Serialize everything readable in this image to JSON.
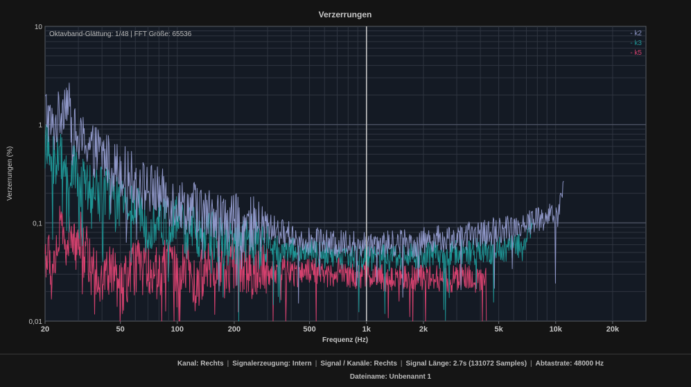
{
  "chart_data": {
    "type": "line",
    "title": "Verzerrungen",
    "xlabel": "Frequenz (Hz)",
    "ylabel": "Verzerrungen (%)",
    "x_scale": "log",
    "y_scale": "log",
    "xlim": [
      20,
      30000
    ],
    "ylim": [
      0.01,
      10
    ],
    "grid": true,
    "legend_position": "top-right",
    "annotation": "Oktavband-Glättung: 1/48 | FFT Größe: 65536",
    "marker_x": 1000,
    "x_ticks": [
      {
        "v": 20,
        "label": "20"
      },
      {
        "v": 50,
        "label": "50"
      },
      {
        "v": 100,
        "label": "100"
      },
      {
        "v": 200,
        "label": "200"
      },
      {
        "v": 500,
        "label": "500"
      },
      {
        "v": 1000,
        "label": "1k"
      },
      {
        "v": 2000,
        "label": "2k"
      },
      {
        "v": 5000,
        "label": "5k"
      },
      {
        "v": 10000,
        "label": "10k"
      },
      {
        "v": 20000,
        "label": "20k"
      }
    ],
    "y_ticks": [
      {
        "v": 10,
        "label": "10"
      },
      {
        "v": 1,
        "label": "1"
      },
      {
        "v": 0.1,
        "label": "0,1"
      },
      {
        "v": 0.01,
        "label": "0,01"
      }
    ],
    "series": [
      {
        "name": "k2",
        "color": "#8f97c8",
        "x": [
          20,
          22,
          24,
          26,
          28,
          30,
          33,
          36,
          40,
          45,
          50,
          56,
          63,
          71,
          80,
          90,
          100,
          112,
          125,
          140,
          160,
          180,
          200,
          224,
          250,
          280,
          315,
          355,
          400,
          450,
          500,
          560,
          630,
          710,
          800,
          900,
          1000,
          1120,
          1250,
          1400,
          1600,
          1800,
          2000,
          2240,
          2500,
          2800,
          3150,
          3550,
          4000,
          4500,
          5000,
          5600,
          6300,
          7100,
          8000,
          9000,
          10000,
          10500,
          11000
        ],
        "y": [
          1.5,
          0.85,
          1.3,
          2.0,
          0.9,
          0.65,
          0.7,
          0.55,
          0.5,
          0.4,
          0.35,
          0.3,
          0.25,
          0.22,
          0.2,
          0.17,
          0.16,
          0.14,
          0.15,
          0.12,
          0.13,
          0.1,
          0.11,
          0.09,
          0.1,
          0.085,
          0.09,
          0.08,
          0.075,
          0.07,
          0.065,
          0.07,
          0.06,
          0.06,
          0.065,
          0.06,
          0.06,
          0.065,
          0.06,
          0.062,
          0.065,
          0.06,
          0.065,
          0.07,
          0.068,
          0.07,
          0.07,
          0.075,
          0.078,
          0.08,
          0.085,
          0.09,
          0.095,
          0.1,
          0.11,
          0.115,
          0.12,
          0.13,
          0.28
        ]
      },
      {
        "name": "k3",
        "color": "#1e9494",
        "x": [
          20,
          22,
          24,
          26,
          28,
          30,
          33,
          36,
          40,
          45,
          50,
          56,
          63,
          71,
          80,
          90,
          100,
          112,
          125,
          140,
          160,
          180,
          200,
          224,
          250,
          280,
          315,
          355,
          400,
          450,
          500,
          560,
          630,
          710,
          800,
          900,
          1000,
          1120,
          1250,
          1400,
          1600,
          1800,
          2000,
          2240,
          2500,
          2800,
          3150,
          3550,
          4000,
          4500,
          5000,
          5600,
          6300,
          7000,
          7500
        ],
        "y": [
          0.6,
          0.4,
          0.5,
          0.3,
          0.35,
          0.28,
          0.22,
          0.2,
          0.25,
          0.18,
          0.15,
          0.16,
          0.12,
          0.1,
          0.11,
          0.09,
          0.1,
          0.08,
          0.085,
          0.07,
          0.075,
          0.065,
          0.07,
          0.06,
          0.065,
          0.055,
          0.06,
          0.052,
          0.055,
          0.05,
          0.05,
          0.048,
          0.046,
          0.045,
          0.046,
          0.045,
          0.044,
          0.045,
          0.044,
          0.045,
          0.046,
          0.045,
          0.046,
          0.048,
          0.047,
          0.048,
          0.05,
          0.05,
          0.052,
          0.052,
          0.055,
          0.056,
          0.058,
          0.055,
          0.12
        ]
      },
      {
        "name": "k5",
        "color": "#d4416e",
        "x": [
          20,
          22,
          24,
          26,
          28,
          30,
          33,
          36,
          40,
          45,
          50,
          56,
          63,
          71,
          80,
          90,
          100,
          112,
          125,
          140,
          160,
          180,
          200,
          224,
          250,
          280,
          315,
          355,
          400,
          450,
          500,
          560,
          630,
          710,
          800,
          900,
          1000,
          1120,
          1250,
          1400,
          1600,
          1800,
          2000,
          2240,
          2500,
          2800,
          3150,
          3550,
          4000,
          4300
        ],
        "y": [
          0.05,
          0.035,
          0.085,
          0.06,
          0.07,
          0.08,
          0.05,
          0.04,
          0.025,
          0.035,
          0.02,
          0.03,
          0.04,
          0.035,
          0.03,
          0.05,
          0.025,
          0.04,
          0.02,
          0.035,
          0.045,
          0.03,
          0.04,
          0.035,
          0.03,
          0.04,
          0.03,
          0.035,
          0.032,
          0.03,
          0.033,
          0.031,
          0.03,
          0.032,
          0.03,
          0.029,
          0.03,
          0.028,
          0.027,
          0.028,
          0.029,
          0.027,
          0.028,
          0.03,
          0.026,
          0.027,
          0.028,
          0.027,
          0.025,
          0.026
        ]
      }
    ]
  },
  "footer": {
    "kanal": "Kanal: Rechts",
    "signalerzeugung": "Signalerzeugung: Intern",
    "signal_kanaele": "Signal / Kanäle: Rechts",
    "signal_laenge": "Signal Länge: 2.7s (131072 Samples)",
    "abtastrate": "Abtastrate: 48000 Hz",
    "dateiname": "Dateiname: Unbenannt 1"
  }
}
